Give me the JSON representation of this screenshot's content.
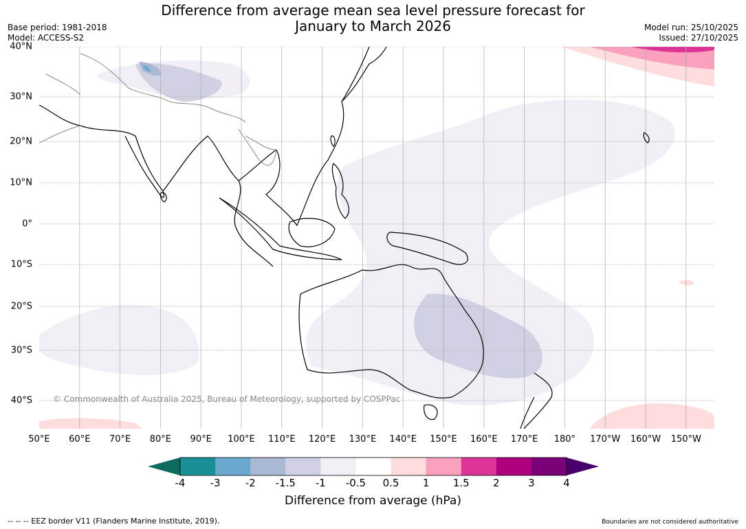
{
  "title_line1": "Difference from average mean sea level pressure forecast for",
  "title_line2": "January to March 2026",
  "meta": {
    "base_period": "Base period: 1981-2018",
    "model": "Model: ACCESS-S2",
    "model_run": "Model run: 25/10/2025",
    "issued": "Issued: 27/10/2025"
  },
  "copyright": "© Commonwealth of Australia 2025, Bureau of Meteorology, supported by COSPPac",
  "map": {
    "lon_labels": [
      "50°E",
      "60°E",
      "70°E",
      "80°E",
      "90°E",
      "100°E",
      "110°E",
      "120°E",
      "130°E",
      "140°E",
      "150°E",
      "160°E",
      "170°E",
      "180°",
      "170°W",
      "160°W",
      "150°W"
    ],
    "lat_labels": [
      "40°N",
      "30°N",
      "20°N",
      "10°N",
      "0°",
      "10°S",
      "20°S",
      "30°S",
      "40°S"
    ],
    "lon_range": [
      50,
      216
    ],
    "lat_range": [
      -46,
      40
    ]
  },
  "colorbar": {
    "title": "Difference from average (hPa)",
    "ticks": [
      "-4",
      "-3",
      "-2",
      "-1.5",
      "-1",
      "-0.5",
      "0.5",
      "1",
      "1.5",
      "2",
      "3",
      "4"
    ],
    "colors": [
      "#1a8f96",
      "#6aa9cf",
      "#a9b8d3",
      "#cfd0e2",
      "#f1eef5",
      "#ffffff",
      "#fcdcdc",
      "#f8a0bc",
      "#dd3497",
      "#ae017e",
      "#7a0177"
    ],
    "under_color": "#0b6b5e",
    "over_color": "#49006a"
  },
  "footer": {
    "eez": "--  --  -- EEZ border V11 (Flanders Marine Institute, 2019).",
    "boundaries": "Boundaries are not considered authoritative"
  }
}
